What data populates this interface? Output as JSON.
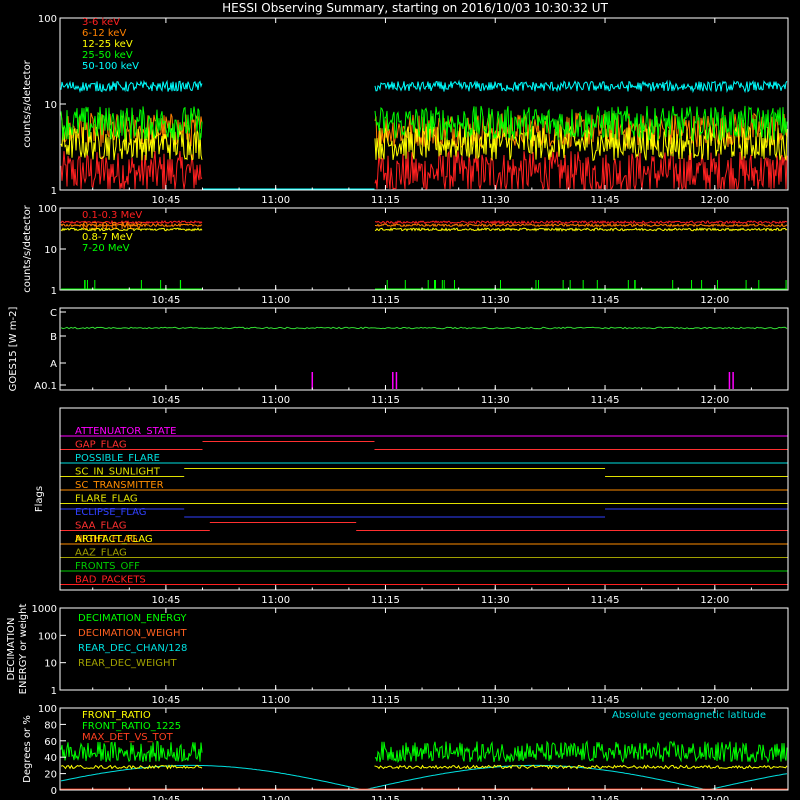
{
  "title": "HESSI Observing Summary, starting on 2016/10/03 10:30:32 UT",
  "time_ticks": [
    "10:45",
    "11:00",
    "11:15",
    "11:30",
    "11:45",
    "12:00"
  ],
  "time_tick_minutes": [
    45,
    60,
    75,
    90,
    105,
    120
  ],
  "time_range_minutes": [
    30.53,
    130
  ],
  "chart_data": [
    {
      "type": "line",
      "panel": "counts-lo",
      "ylabel": "counts/s/detector",
      "scale": "log",
      "ylim": [
        1,
        100
      ],
      "ytick_values": [
        1,
        10,
        100
      ],
      "ytick_labels": [
        "1",
        "10",
        "100"
      ],
      "gap_minutes": [
        50,
        73.5
      ],
      "series": [
        {
          "name": "3-6 keV",
          "color": "#ff2020",
          "level": 1.6,
          "spread": 0.25
        },
        {
          "name": "6-12 keV",
          "color": "#ff8000",
          "level": 5.0,
          "spread": 0.2
        },
        {
          "name": "12-25 keV",
          "color": "#ffff00",
          "level": 3.5,
          "spread": 0.2
        },
        {
          "name": "25-50 keV",
          "color": "#00ff00",
          "level": 6.0,
          "spread": 0.2
        },
        {
          "name": "50-100 keV",
          "color": "#00ffff",
          "level": 16,
          "spread": 0.06
        }
      ]
    },
    {
      "type": "line",
      "panel": "counts-hi",
      "ylabel": "counts/s/detector",
      "scale": "log",
      "ylim": [
        1,
        100
      ],
      "ytick_values": [
        1,
        10,
        100
      ],
      "ytick_labels": [
        "1",
        "10",
        "100"
      ],
      "gap_minutes": [
        50,
        73.5
      ],
      "series": [
        {
          "name": "0.1-0.3 MeV",
          "color": "#ff2020",
          "level": 45,
          "spread": 0.03
        },
        {
          "name": "0.3-0.8 MeV",
          "color": "#ff8000",
          "level": 38,
          "spread": 0.03
        },
        {
          "name": "0.8-7 MeV",
          "color": "#ffff00",
          "level": 30,
          "spread": 0.03
        },
        {
          "name": "7-20 MeV",
          "color": "#00ff00",
          "level": 1,
          "spread": 0.0
        }
      ]
    },
    {
      "type": "line",
      "panel": "goes",
      "ylabel": "GOES15 [W m-2]",
      "ytick_labels": [
        "C",
        "B",
        "A",
        "A0.1"
      ],
      "series": [
        {
          "name": "GOES15",
          "color": "#33dd33",
          "level": 1.35
        }
      ],
      "spikes_minutes": [
        65,
        76,
        76.5,
        122,
        122.5
      ]
    },
    {
      "type": "line",
      "panel": "flags",
      "ylabel": "Flags",
      "flags": [
        {
          "name": "ATTENUATOR_STATE",
          "color": "#ff00ff",
          "segments": [
            [
              30.53,
              130,
              0
            ]
          ]
        },
        {
          "name": "GAP_FLAG",
          "color": "#ff3030",
          "segments": [
            [
              30.53,
              50,
              0
            ],
            [
              50,
              73.5,
              1
            ],
            [
              73.5,
              130,
              0
            ]
          ]
        },
        {
          "name": "POSSIBLE_FLARE",
          "color": "#00e0e0",
          "segments": [
            [
              30.53,
              130,
              0
            ]
          ]
        },
        {
          "name": "SC_IN_SUNLIGHT",
          "color": "#e0e000",
          "segments": [
            [
              30.53,
              47.5,
              0
            ],
            [
              47.5,
              105,
              1
            ],
            [
              105,
              130,
              0
            ]
          ]
        },
        {
          "name": "SC_TRANSMITTER",
          "color": "#ff8c00",
          "segments": [
            [
              30.53,
              130,
              0
            ]
          ]
        },
        {
          "name": "FLARE_FLAG",
          "color": "#e0e000",
          "segments": [
            [
              30.53,
              130,
              0
            ]
          ]
        },
        {
          "name": "ECLIPSE_FLAG",
          "color": "#3040ff",
          "segments": [
            [
              30.53,
              47.5,
              1
            ],
            [
              47.5,
              105,
              0
            ],
            [
              105,
              130,
              1
            ]
          ]
        },
        {
          "name": "SAA_FLAG",
          "color": "#ff3030",
          "segments": [
            [
              30.53,
              51,
              0
            ],
            [
              51,
              71,
              1
            ],
            [
              71,
              130,
              0
            ]
          ]
        },
        {
          "name": "NIGHT_FLAG",
          "color": "#ff8c00",
          "segments": [
            [
              30.53,
              130,
              0
            ]
          ]
        },
        {
          "name": "AAZ_FLAG",
          "color": "#a0a000",
          "segments": [
            [
              30.53,
              130,
              0
            ]
          ]
        },
        {
          "name": "FRONTS_OFF",
          "color": "#00cc00",
          "segments": [
            [
              30.53,
              130,
              0
            ]
          ]
        },
        {
          "name": "BAD_PACKETS",
          "color": "#ff2020",
          "segments": [
            [
              30.53,
              130,
              0
            ]
          ]
        }
      ],
      "overlay": {
        "label": "ARTIFACT_FLAG",
        "color": "#ffff00"
      }
    },
    {
      "type": "line",
      "panel": "decimation",
      "ylabel": "DECIMATION ENERGY or weight",
      "scale": "log",
      "ylim": [
        1,
        1000
      ],
      "ytick_values": [
        1,
        10,
        100,
        1000
      ],
      "ytick_labels": [
        "1",
        "10",
        "100",
        "1000"
      ],
      "series": [
        {
          "name": "DECIMATION_ENERGY",
          "color": "#00ff00"
        },
        {
          "name": "DECIMATION_WEIGHT",
          "color": "#ff6020"
        },
        {
          "name": "REAR_DEC_CHAN/128",
          "color": "#00e0e0"
        },
        {
          "name": "REAR_DEC_WEIGHT",
          "color": "#a0a000"
        }
      ]
    },
    {
      "type": "line",
      "panel": "ratio",
      "ylabel": "Degrees or %",
      "ylim": [
        0,
        100
      ],
      "ytick_values": [
        0,
        20,
        40,
        60,
        80,
        100
      ],
      "ytick_labels": [
        "0",
        "20",
        "40",
        "60",
        "80",
        "100"
      ],
      "gap_minutes": [
        50,
        73.5
      ],
      "series": [
        {
          "name": "FRONT_RATIO",
          "color": "#ffff00",
          "level": 28
        },
        {
          "name": "FRONT_RATIO_1225",
          "color": "#00ff00",
          "level": 45
        },
        {
          "name": "MAX_DET_VS_TOT",
          "color": "#ff4020",
          "level": 2
        },
        {
          "name": "Absolute geomagnetic latitude",
          "color": "#00e0e0"
        }
      ]
    }
  ]
}
